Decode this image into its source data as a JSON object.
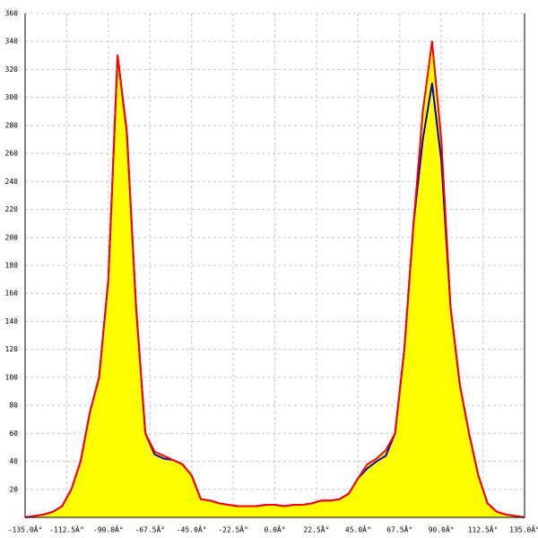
{
  "chart_data": {
    "type": "area",
    "x": [
      -135,
      -130,
      -125,
      -120,
      -115,
      -110,
      -105,
      -100,
      -95,
      -90,
      -85,
      -80,
      -75,
      -70,
      -65,
      -60,
      -55,
      -50,
      -45,
      -40,
      -35,
      -30,
      -25,
      -20,
      -15,
      -10,
      -5,
      0,
      5,
      10,
      15,
      20,
      25,
      30,
      35,
      40,
      45,
      50,
      55,
      60,
      65,
      70,
      75,
      80,
      85,
      90,
      95,
      100,
      105,
      110,
      115,
      120,
      125,
      130,
      135
    ],
    "series": [
      {
        "color": "#0000cc",
        "fill": null,
        "values": [
          0,
          1,
          2,
          4,
          8,
          20,
          40,
          75,
          100,
          170,
          330,
          275,
          150,
          60,
          45,
          42,
          41,
          38,
          30,
          13,
          12,
          10,
          9,
          8,
          8,
          8,
          9,
          9,
          8,
          9,
          9,
          10,
          12,
          12,
          13,
          17,
          28,
          35,
          40,
          44,
          60,
          120,
          210,
          270,
          310,
          255,
          150,
          95,
          60,
          30,
          10,
          4,
          2,
          1,
          0
        ]
      },
      {
        "color": "#ff0000",
        "fill": "#ffff00",
        "values": [
          0,
          1,
          2,
          4,
          8,
          20,
          40,
          75,
          100,
          170,
          330,
          275,
          150,
          60,
          47,
          44,
          41,
          38,
          30,
          13,
          12,
          10,
          9,
          8,
          8,
          8,
          9,
          9,
          8,
          9,
          9,
          10,
          12,
          12,
          13,
          17,
          28,
          38,
          42,
          48,
          60,
          120,
          210,
          290,
          340,
          270,
          150,
          95,
          60,
          30,
          10,
          4,
          2,
          1,
          0
        ]
      }
    ],
    "xlim": [
      -135,
      135
    ],
    "xticks": [
      {
        "value": -135,
        "label": "-135.0Â°"
      },
      {
        "value": -112.5,
        "label": "-112.5Â°"
      },
      {
        "value": -90,
        "label": "-90.0Â°"
      },
      {
        "value": -67.5,
        "label": "-67.5Â°"
      },
      {
        "value": -45,
        "label": "-45.0Â°"
      },
      {
        "value": -22.5,
        "label": "-22.5Â°"
      },
      {
        "value": 0,
        "label": "0.0Â°"
      },
      {
        "value": 22.5,
        "label": "22.5Â°"
      },
      {
        "value": 45,
        "label": "45.0Â°"
      },
      {
        "value": 67.5,
        "label": "67.5Â°"
      },
      {
        "value": 90,
        "label": "90.0Â°"
      },
      {
        "value": 112.5,
        "label": "112.5Â°"
      },
      {
        "value": 135,
        "label": "135.0Â°"
      }
    ],
    "ylim": [
      0,
      360
    ],
    "yticks": [
      20,
      40,
      60,
      80,
      100,
      120,
      140,
      160,
      180,
      200,
      220,
      240,
      260,
      280,
      300,
      320,
      340,
      360
    ],
    "grid": true
  }
}
